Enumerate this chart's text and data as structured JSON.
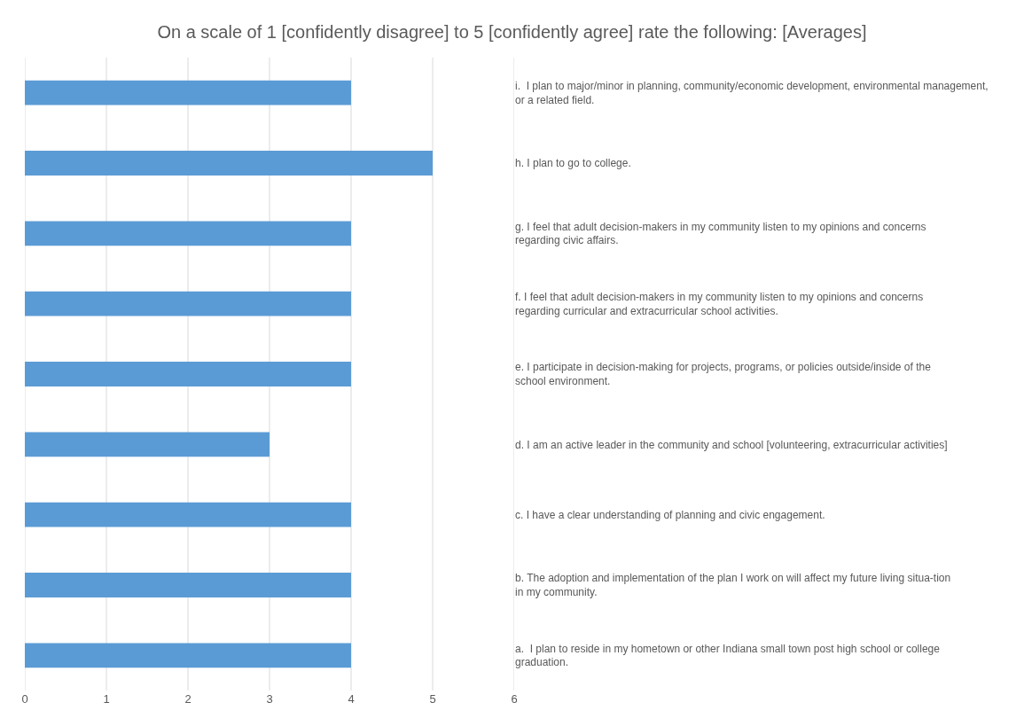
{
  "chart_data": {
    "type": "bar",
    "orientation": "horizontal",
    "title": "On a scale of 1 [confidently disagree] to 5 [confidently agree] rate the following: [Averages]",
    "categories": [
      "i.  I plan to major/minor in planning, community/economic development, environmental management, or a related field.",
      "h. I plan to go to college.",
      "g. I feel that adult decision-makers in my community listen to my opinions and concerns regarding civic affairs.",
      "f. I feel that adult decision-makers in my community listen to my opinions and concerns regarding curricular and extracurricular school activities.",
      "e. I participate in decision-making for projects, programs, or policies outside/inside of the school environment.",
      "d. I am an active leader in the community and school [volunteering, extracurricular activities]",
      "c. I have a clear understanding of planning and civic engagement.",
      "b. The adoption and implementation of the plan I work on will affect my future living situa-tion in my community.",
      "a.  I plan to reside in my hometown or other Indiana small town post high school or college graduation."
    ],
    "values": [
      4,
      5,
      4,
      4,
      4,
      3,
      4,
      4,
      4
    ],
    "color": "#5b9bd5",
    "xlim": [
      0,
      6
    ],
    "xticks": [
      0,
      1,
      2,
      3,
      4,
      5,
      6
    ],
    "grid": "x"
  }
}
